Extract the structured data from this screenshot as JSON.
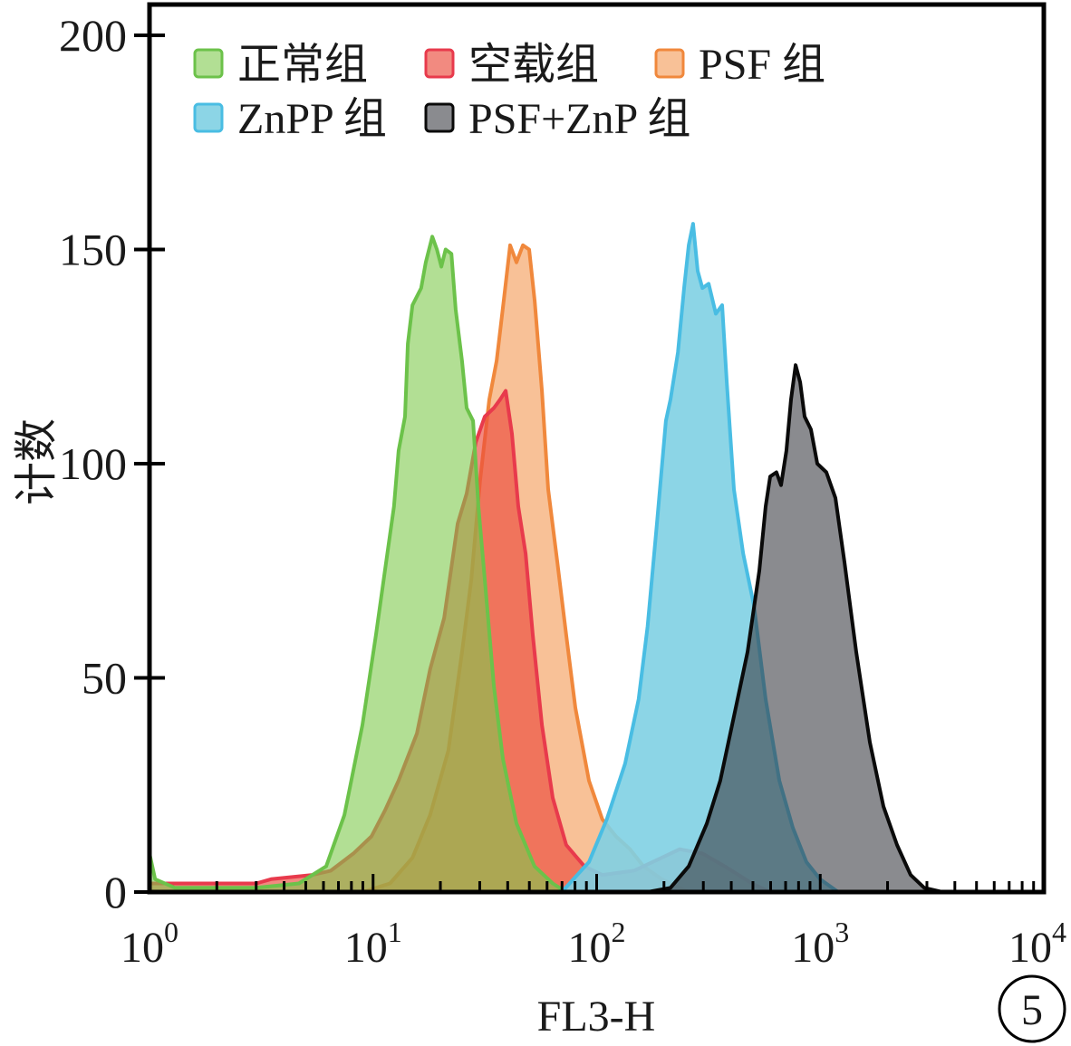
{
  "chart_data": {
    "type": "area",
    "xlabel": "FL3-H",
    "ylabel": "计数",
    "x_scale": "log",
    "xlim": [
      1,
      10000
    ],
    "ylim": [
      0,
      200
    ],
    "y_ticks": [
      0,
      50,
      100,
      150,
      200
    ],
    "x_ticks": [
      {
        "value": 1,
        "base": "10",
        "exp": "0"
      },
      {
        "value": 10,
        "base": "10",
        "exp": "1"
      },
      {
        "value": 100,
        "base": "10",
        "exp": "2"
      },
      {
        "value": 1000,
        "base": "10",
        "exp": "3"
      },
      {
        "value": 10000,
        "base": "10",
        "exp": "4"
      }
    ],
    "x_minor_ticks": true,
    "grid": false,
    "legend_position": "top-left",
    "series": [
      {
        "name": "正常组",
        "color": "#6cc24a",
        "fill": "#7fca4d99",
        "points": [
          [
            1.0,
            9
          ],
          [
            1.06,
            3
          ],
          [
            1.3,
            1
          ],
          [
            3.0,
            1
          ],
          [
            4.66,
            2
          ],
          [
            6.17,
            6
          ],
          [
            7.44,
            18
          ],
          [
            8.96,
            39
          ],
          [
            10.3,
            60
          ],
          [
            11.3,
            75
          ],
          [
            12.4,
            90
          ],
          [
            13.0,
            103
          ],
          [
            13.9,
            111
          ],
          [
            14.3,
            128
          ],
          [
            15.0,
            137
          ],
          [
            16.4,
            141
          ],
          [
            17.2,
            147
          ],
          [
            18.4,
            153
          ],
          [
            19.3,
            150
          ],
          [
            20.2,
            146
          ],
          [
            21.1,
            150
          ],
          [
            22.4,
            149
          ],
          [
            23.4,
            136
          ],
          [
            25.0,
            124
          ],
          [
            26.2,
            113
          ],
          [
            28.0,
            110
          ],
          [
            29.6,
            90
          ],
          [
            31.6,
            73
          ],
          [
            34.7,
            48
          ],
          [
            38.1,
            31
          ],
          [
            43.8,
            16
          ],
          [
            52.7,
            6
          ],
          [
            63.6,
            2
          ],
          [
            73.1,
            0
          ]
        ]
      },
      {
        "name": "空载组",
        "color": "#e83a4c",
        "fill": "#eb4b3ca6",
        "points": [
          [
            1.0,
            2
          ],
          [
            3.0,
            2
          ],
          [
            3.5,
            3
          ],
          [
            5.36,
            4
          ],
          [
            6.47,
            5
          ],
          [
            8.17,
            9
          ],
          [
            9.84,
            13
          ],
          [
            11.3,
            19
          ],
          [
            13.0,
            26
          ],
          [
            15.7,
            37
          ],
          [
            18.0,
            52
          ],
          [
            20.8,
            64
          ],
          [
            23.9,
            86
          ],
          [
            26.2,
            93
          ],
          [
            28.8,
            105
          ],
          [
            31.6,
            111
          ],
          [
            34.7,
            113
          ],
          [
            37.0,
            115
          ],
          [
            39.2,
            117
          ],
          [
            41.8,
            107
          ],
          [
            44.6,
            90
          ],
          [
            48.1,
            79
          ],
          [
            51.8,
            60
          ],
          [
            56.9,
            39
          ],
          [
            63.6,
            22
          ],
          [
            73.1,
            11
          ],
          [
            88.1,
            6
          ],
          [
            106,
            4
          ],
          [
            147,
            5
          ],
          [
            195,
            8
          ],
          [
            235,
            10
          ],
          [
            297,
            9
          ],
          [
            374,
            6
          ],
          [
            495,
            2
          ],
          [
            597,
            0
          ]
        ]
      },
      {
        "name": "PSF 组",
        "color": "#f0883c",
        "fill": "#f7b685d9",
        "points": [
          [
            8.96,
            0
          ],
          [
            11.9,
            2
          ],
          [
            15.0,
            8
          ],
          [
            18.0,
            18
          ],
          [
            21.7,
            33
          ],
          [
            25.0,
            56
          ],
          [
            27.5,
            73
          ],
          [
            30.1,
            96
          ],
          [
            33.1,
            115
          ],
          [
            35.7,
            124
          ],
          [
            38.4,
            138
          ],
          [
            41.0,
            151
          ],
          [
            43.8,
            147
          ],
          [
            46.8,
            151
          ],
          [
            49.9,
            150
          ],
          [
            52.8,
            138
          ],
          [
            56.9,
            117
          ],
          [
            60.7,
            94
          ],
          [
            66.7,
            77
          ],
          [
            73.1,
            60
          ],
          [
            80.3,
            43
          ],
          [
            92.4,
            26
          ],
          [
            106,
            17
          ],
          [
            122,
            13
          ],
          [
            141,
            10
          ],
          [
            162,
            6
          ],
          [
            195,
            3
          ],
          [
            258,
            0
          ]
        ]
      },
      {
        "name": "ZnPP 组",
        "color": "#49bde3",
        "fill": "#80d0e3e6",
        "points": [
          [
            69.8,
            0
          ],
          [
            92.4,
            7
          ],
          [
            111,
            17
          ],
          [
            134,
            30
          ],
          [
            154,
            45
          ],
          [
            169,
            62
          ],
          [
            186,
            86
          ],
          [
            204,
            110
          ],
          [
            214,
            115
          ],
          [
            231,
            126
          ],
          [
            246,
            141
          ],
          [
            258,
            151
          ],
          [
            270,
            156
          ],
          [
            283,
            145
          ],
          [
            297,
            141
          ],
          [
            317,
            142
          ],
          [
            341,
            135
          ],
          [
            364,
            137
          ],
          [
            382,
            119
          ],
          [
            411,
            94
          ],
          [
            452,
            79
          ],
          [
            505,
            67
          ],
          [
            570,
            45
          ],
          [
            656,
            26
          ],
          [
            754,
            15
          ],
          [
            867,
            7
          ],
          [
            998,
            3
          ],
          [
            1203,
            0
          ]
        ]
      },
      {
        "name": "PSF+ZnP 组",
        "color": "#0a0a0a",
        "fill": "#3c3e4499",
        "points": [
          [
            169,
            0
          ],
          [
            214,
            1
          ],
          [
            258,
            6
          ],
          [
            311,
            16
          ],
          [
            357,
            26
          ],
          [
            411,
            41
          ],
          [
            473,
            56
          ],
          [
            534,
            75
          ],
          [
            570,
            90
          ],
          [
            597,
            97
          ],
          [
            637,
            98
          ],
          [
            668,
            95
          ],
          [
            706,
            103
          ],
          [
            740,
            115
          ],
          [
            776,
            123
          ],
          [
            813,
            119
          ],
          [
            851,
            111
          ],
          [
            909,
            108
          ],
          [
            970,
            100
          ],
          [
            1065,
            98
          ],
          [
            1169,
            92
          ],
          [
            1283,
            77
          ],
          [
            1449,
            56
          ],
          [
            1667,
            35
          ],
          [
            1918,
            20
          ],
          [
            2205,
            11
          ],
          [
            2536,
            4
          ],
          [
            2917,
            1
          ],
          [
            3516,
            0
          ]
        ]
      }
    ]
  },
  "panel_label": "5"
}
